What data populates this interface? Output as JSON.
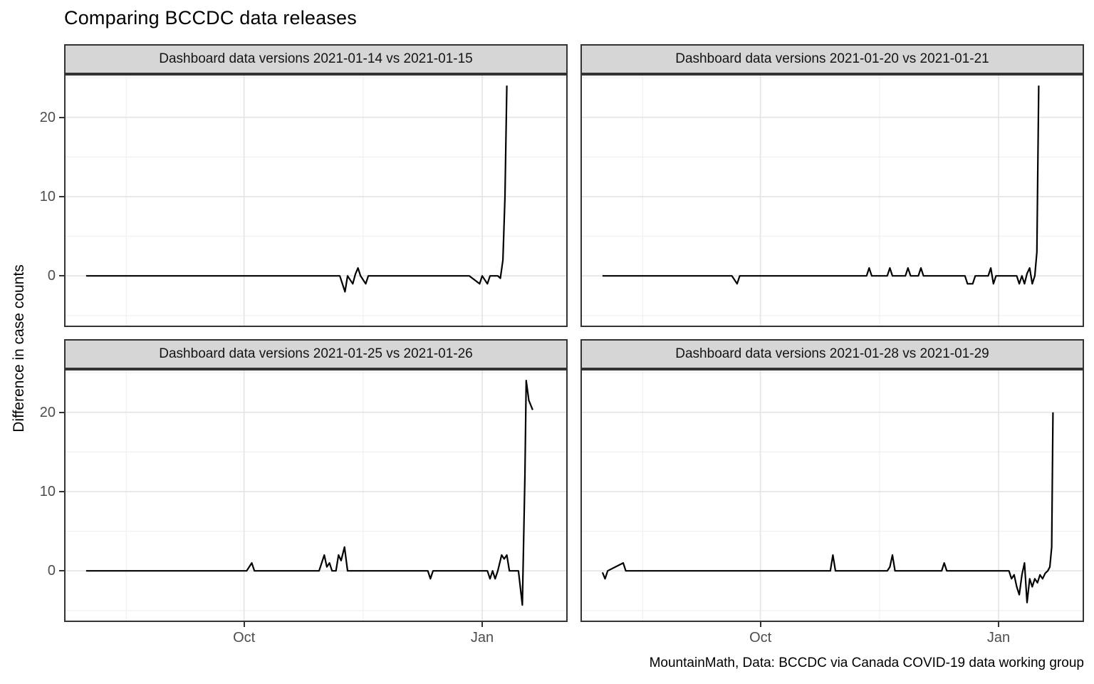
{
  "title": "Comparing BCCDC data releases",
  "caption": "MountainMath, Data: BCCDC via Canada COVID-19 data working group",
  "chart_data": {
    "type": "line",
    "title": "Comparing BCCDC data releases",
    "xlabel": "",
    "ylabel": "Difference in case counts",
    "caption": "MountainMath, Data: BCCDC via Canada COVID-19 data working group",
    "x_unit": "days since 2020-08-01",
    "xlim": [
      -8.5,
      186
    ],
    "ylim": [
      -6.45,
      25.45
    ],
    "grid": true,
    "legend": "none",
    "line_color": "#000000",
    "strip_fill": "#d6d6d6",
    "panel_border": "#333333",
    "grid_major_color": "#e4e4e4",
    "grid_minor_color": "#f1f1f1",
    "x_major_ticks": [
      {
        "label": "Oct",
        "day": 61
      },
      {
        "label": "Jan",
        "day": 153
      }
    ],
    "x_minor_days": [
      15.5,
      107
    ],
    "y_major_ticks": [
      {
        "label": "0",
        "value": 0
      },
      {
        "label": "10",
        "value": 10
      },
      {
        "label": "20",
        "value": 20
      }
    ],
    "y_minor_values": [
      -5,
      5,
      15,
      25
    ],
    "panels": [
      {
        "strip": "Dashboard data versions 2021-01-14 vs 2021-01-15",
        "row": 0,
        "col": 0,
        "series": [
          [
            0,
            0
          ],
          [
            98,
            0
          ],
          [
            100,
            -2
          ],
          [
            101,
            0
          ],
          [
            103,
            -1
          ],
          [
            104,
            0.2
          ],
          [
            105,
            1
          ],
          [
            106,
            0
          ],
          [
            108,
            -1
          ],
          [
            109,
            0
          ],
          [
            148,
            0
          ],
          [
            152,
            -1
          ],
          [
            153,
            0
          ],
          [
            155,
            -1
          ],
          [
            156,
            0
          ],
          [
            159,
            0
          ],
          [
            160,
            -0.3
          ],
          [
            161,
            2
          ],
          [
            161.8,
            10
          ],
          [
            162.5,
            24
          ]
        ]
      },
      {
        "strip": "Dashboard data versions 2021-01-20 vs 2021-01-21",
        "row": 0,
        "col": 1,
        "series": [
          [
            0,
            0
          ],
          [
            50,
            0
          ],
          [
            52,
            -1
          ],
          [
            53,
            0
          ],
          [
            102,
            0
          ],
          [
            103,
            1
          ],
          [
            104,
            0
          ],
          [
            110,
            0
          ],
          [
            111,
            1
          ],
          [
            112,
            0
          ],
          [
            117,
            0
          ],
          [
            118,
            1
          ],
          [
            119,
            0
          ],
          [
            122,
            0
          ],
          [
            123,
            1
          ],
          [
            124,
            0
          ],
          [
            140,
            0
          ],
          [
            141,
            -1
          ],
          [
            143,
            -1
          ],
          [
            144,
            0
          ],
          [
            149,
            0
          ],
          [
            150,
            1
          ],
          [
            151,
            -1
          ],
          [
            152,
            0
          ],
          [
            160,
            0
          ],
          [
            161,
            -1
          ],
          [
            162,
            0
          ],
          [
            163,
            -1
          ],
          [
            164,
            0.3
          ],
          [
            165,
            1
          ],
          [
            166,
            -1
          ],
          [
            167,
            0
          ],
          [
            167.8,
            3
          ],
          [
            168.5,
            24
          ]
        ]
      },
      {
        "strip": "Dashboard data versions 2021-01-25 vs 2021-01-26",
        "row": 1,
        "col": 0,
        "series": [
          [
            0,
            0
          ],
          [
            62,
            0
          ],
          [
            64,
            1
          ],
          [
            65,
            0
          ],
          [
            90,
            0
          ],
          [
            92,
            2
          ],
          [
            93,
            0.5
          ],
          [
            94,
            1
          ],
          [
            95,
            0
          ],
          [
            96.5,
            0
          ],
          [
            97.5,
            2
          ],
          [
            98.5,
            1.3
          ],
          [
            99.8,
            3
          ],
          [
            101,
            0
          ],
          [
            132,
            0
          ],
          [
            133,
            -1
          ],
          [
            134,
            0
          ],
          [
            155,
            0
          ],
          [
            156,
            -1
          ],
          [
            157,
            0
          ],
          [
            158,
            -1
          ],
          [
            159,
            0
          ],
          [
            160.5,
            2
          ],
          [
            161.5,
            1.5
          ],
          [
            162.5,
            2
          ],
          [
            163.5,
            0
          ],
          [
            167,
            0
          ],
          [
            168.5,
            -4.3
          ],
          [
            169.5,
            12
          ],
          [
            170,
            24
          ],
          [
            171,
            21.5
          ],
          [
            172.5,
            20.3
          ]
        ]
      },
      {
        "strip": "Dashboard data versions 2021-01-28 vs 2021-01-29",
        "row": 1,
        "col": 1,
        "series": [
          [
            0,
            -0.2
          ],
          [
            1,
            -1
          ],
          [
            2,
            0
          ],
          [
            8,
            1
          ],
          [
            9,
            0
          ],
          [
            88,
            0
          ],
          [
            89,
            2
          ],
          [
            90,
            0
          ],
          [
            110,
            0
          ],
          [
            111,
            0.5
          ],
          [
            112,
            2
          ],
          [
            113,
            0
          ],
          [
            131,
            0
          ],
          [
            132,
            1
          ],
          [
            133,
            0
          ],
          [
            157,
            0
          ],
          [
            158,
            -1
          ],
          [
            159,
            -0.5
          ],
          [
            160,
            -2
          ],
          [
            161,
            -3
          ],
          [
            162,
            -0.5
          ],
          [
            163,
            1
          ],
          [
            164,
            -4
          ],
          [
            165,
            -1
          ],
          [
            166,
            -2
          ],
          [
            167,
            -1
          ],
          [
            168,
            -1.5
          ],
          [
            169,
            -0.5
          ],
          [
            170,
            -1
          ],
          [
            171,
            -0.3
          ],
          [
            172,
            0
          ],
          [
            172.8,
            0.5
          ],
          [
            173.5,
            3
          ],
          [
            174,
            20
          ]
        ]
      }
    ]
  }
}
